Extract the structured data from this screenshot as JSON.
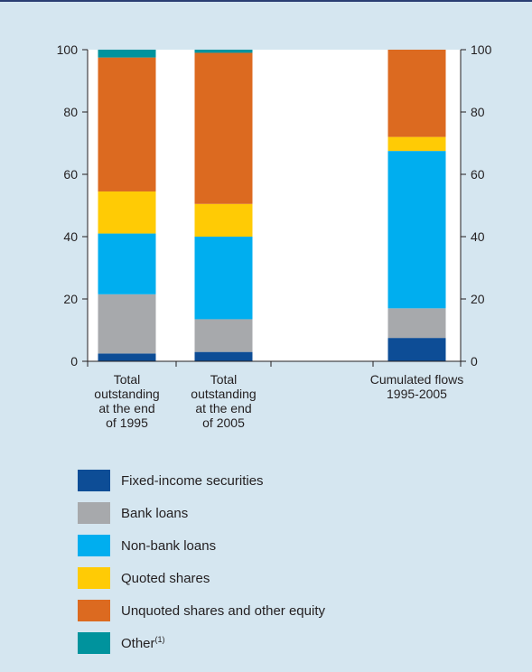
{
  "chart_data": {
    "type": "bar",
    "stacked": true,
    "yaxis": {
      "min": 0,
      "max": 100,
      "ticks": [
        0,
        20,
        40,
        60,
        80,
        100
      ],
      "left_and_right": true
    },
    "categories": [
      {
        "label_lines": [
          "Total",
          "outstanding",
          "at the end",
          "of 1995"
        ]
      },
      {
        "label_lines": [
          "Total",
          "outstanding",
          "at the end",
          "of 2005"
        ]
      },
      {
        "label_lines": [
          "Cumulated flows",
          "1995-2005"
        ]
      }
    ],
    "series": [
      {
        "name": "Fixed-income securities",
        "color": "#0d4d96",
        "values": [
          2.5,
          3.0,
          7.5
        ]
      },
      {
        "name": "Bank loans",
        "color": "#a7a9ac",
        "values": [
          19.0,
          10.5,
          9.5
        ]
      },
      {
        "name": "Non-bank loans",
        "color": "#00aeef",
        "values": [
          19.5,
          26.5,
          50.5
        ]
      },
      {
        "name": "Quoted shares",
        "color": "#ffcb05",
        "values": [
          13.5,
          10.5,
          4.5
        ]
      },
      {
        "name": "Unquoted shares and other equity",
        "color": "#dc6a20",
        "values": [
          43.0,
          48.5,
          28.0
        ]
      },
      {
        "name": "Other",
        "footnote": "(1)",
        "color": "#00939d",
        "values": [
          2.5,
          1.0,
          0
        ]
      }
    ],
    "grid": false,
    "legend_position": "bottom"
  }
}
